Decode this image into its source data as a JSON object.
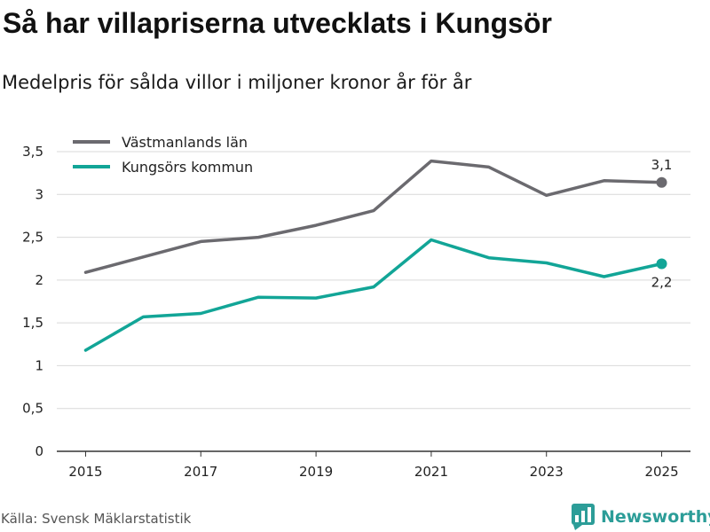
{
  "header": {
    "title": "Så har villapriserna utvecklats i Kungsör",
    "subtitle": "Medelpris för sålda villor i miljoner kronor år för år"
  },
  "footer": {
    "source": "Källa: Svensk Mäklarstatistik",
    "brand": "Newsworthy"
  },
  "icons": {
    "brand": "newsworthy-logo-icon"
  },
  "chart_data": {
    "type": "line",
    "title": "Så har villapriserna utvecklats i Kungsör",
    "subtitle": "Medelpris för sålda villor i miljoner kronor år för år",
    "xlabel": "",
    "ylabel": "",
    "x": [
      2015,
      2016,
      2017,
      2018,
      2019,
      2020,
      2021,
      2022,
      2023,
      2024,
      2025
    ],
    "xticks": [
      2015,
      2017,
      2019,
      2021,
      2023,
      2025
    ],
    "xticklabels": [
      "2015",
      "2017",
      "2019",
      "2021",
      "2023",
      "2025"
    ],
    "xlim": [
      2014.5,
      2025.5
    ],
    "ylim": [
      0,
      3.5
    ],
    "yticks": [
      0,
      0.5,
      1,
      1.5,
      2,
      2.5,
      3,
      3.5
    ],
    "yticklabels": [
      "0",
      "0,5",
      "1",
      "1,5",
      "2",
      "2,5",
      "3",
      "3,5"
    ],
    "grid": true,
    "legend_position": "top-left",
    "series": [
      {
        "name": "Västmanlands län",
        "color": "#6b6a6f",
        "values": [
          2.09,
          2.27,
          2.45,
          2.5,
          2.64,
          2.81,
          3.39,
          3.32,
          2.99,
          3.16,
          3.14
        ],
        "end_label": "3,1",
        "end_label_placement": "above"
      },
      {
        "name": "Kungsörs kommun",
        "color": "#12a597",
        "values": [
          1.18,
          1.57,
          1.61,
          1.8,
          1.79,
          1.92,
          2.47,
          2.26,
          2.2,
          2.04,
          2.19
        ],
        "end_label": "2,2",
        "end_label_placement": "below"
      }
    ]
  }
}
